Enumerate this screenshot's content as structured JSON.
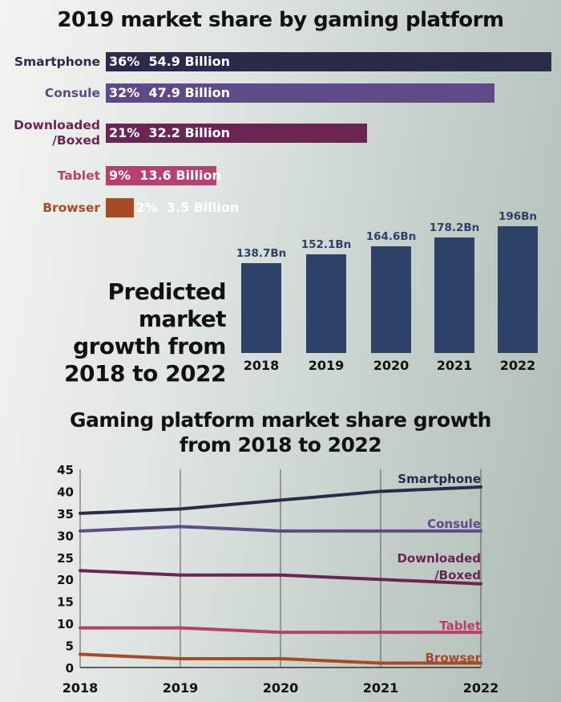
{
  "chart_data": [
    {
      "type": "bar",
      "orientation": "horizontal",
      "title": "2019 market share by gaming platform",
      "categories": [
        "Smartphone",
        "Consule",
        "Downloaded /Boxed",
        "Tablet",
        "Browser"
      ],
      "category_lines": [
        [
          "Smartphone"
        ],
        [
          "Consule"
        ],
        [
          "Downloaded",
          "/Boxed"
        ],
        [
          "Tablet"
        ],
        [
          "Browser"
        ]
      ],
      "percent_labels": [
        "36%",
        "32%",
        "21%",
        "9%",
        "2%"
      ],
      "values": [
        54.9,
        47.9,
        32.2,
        13.6,
        3.5
      ],
      "value_labels": [
        "54.9 Billion",
        "47.9 Billion",
        "32.2 Billion",
        "13.6 Billion",
        "3.5 Billion"
      ],
      "unit": "Billion",
      "colors": [
        "#2a2a4a",
        "#5e4a86",
        "#6b2554",
        "#b7406c",
        "#a74a26"
      ]
    },
    {
      "type": "bar",
      "orientation": "vertical",
      "title": "Predicted market growth from 2018 to 2022",
      "title_lines": [
        "Predicted market",
        "growth from",
        "2018 to 2022"
      ],
      "categories": [
        "2018",
        "2019",
        "2020",
        "2021",
        "2022"
      ],
      "values": [
        138.7,
        152.1,
        164.6,
        178.2,
        196
      ],
      "value_labels": [
        "138.7Bn",
        "152.1Bn",
        "164.6Bn",
        "178.2Bn",
        "196Bn"
      ],
      "color": "#2e4167"
    },
    {
      "type": "line",
      "title": "Gaming platform market share growth from 2018 to 2022",
      "title_lines": [
        "Gaming platform market share growth",
        "from 2018 to 2022"
      ],
      "x": [
        "2018",
        "2019",
        "2020",
        "2021",
        "2022"
      ],
      "ylim": [
        0,
        45
      ],
      "yticks": [
        "0",
        "5",
        "10",
        "15",
        "20",
        "25",
        "30",
        "35",
        "40",
        "45"
      ],
      "grid": "vertical",
      "series": [
        {
          "name": "Smartphone",
          "label_lines": [
            "Smartphone"
          ],
          "values": [
            35,
            36,
            38,
            40,
            41
          ],
          "color": "#2a2a4a"
        },
        {
          "name": "Consule",
          "label_lines": [
            "Consule"
          ],
          "values": [
            31,
            32,
            31,
            31,
            31
          ],
          "color": "#5e4a86"
        },
        {
          "name": "Downloaded /Boxed",
          "label_lines": [
            "Downloaded",
            "/Boxed"
          ],
          "values": [
            22,
            21,
            21,
            20,
            19
          ],
          "color": "#6b2554"
        },
        {
          "name": "Tablet",
          "label_lines": [
            "Tablet"
          ],
          "values": [
            9,
            9,
            8,
            8,
            8
          ],
          "color": "#b7406c"
        },
        {
          "name": "Browser",
          "label_lines": [
            "Browser"
          ],
          "values": [
            3,
            2,
            2,
            1,
            1
          ],
          "color": "#a74a26"
        }
      ]
    }
  ]
}
